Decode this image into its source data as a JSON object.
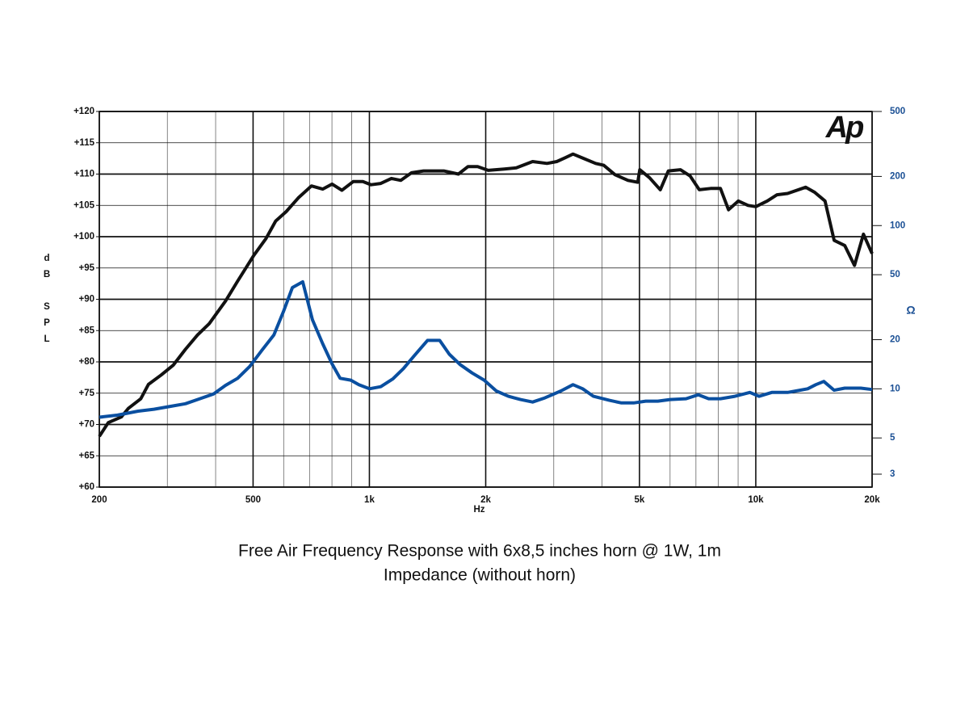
{
  "chart_data": {
    "type": "line",
    "title": [
      "Free Air Frequency Response with 6x8,5 inches horn @ 1W, 1m",
      "Impedance (without horn)"
    ],
    "annotation": "Ap",
    "x_label": "Hz",
    "y_label": "dB SPL",
    "y2_label": "Ω",
    "log_x": true,
    "log_y2": true,
    "grid": true,
    "xlim": [
      200,
      20000
    ],
    "xticks": [
      {
        "value": 200,
        "label": "200"
      },
      {
        "value": 500,
        "label": "500"
      },
      {
        "value": 1000,
        "label": "1k"
      },
      {
        "value": 2000,
        "label": "2k"
      },
      {
        "value": 5000,
        "label": "5k"
      },
      {
        "value": 10000,
        "label": "10k"
      },
      {
        "value": 20000,
        "label": "20k"
      }
    ],
    "xminor_ticks": [
      300,
      400,
      600,
      700,
      800,
      900,
      3000,
      4000,
      6000,
      7000,
      8000,
      9000
    ],
    "ylim": [
      60,
      120
    ],
    "yticks": [
      {
        "value": 60,
        "label": "+60"
      },
      {
        "value": 65,
        "label": "+65"
      },
      {
        "value": 70,
        "label": "+70"
      },
      {
        "value": 75,
        "label": "+75"
      },
      {
        "value": 80,
        "label": "+80"
      },
      {
        "value": 85,
        "label": "+85"
      },
      {
        "value": 90,
        "label": "+90"
      },
      {
        "value": 95,
        "label": "+95"
      },
      {
        "value": 100,
        "label": "+100"
      },
      {
        "value": 105,
        "label": "+105"
      },
      {
        "value": 110,
        "label": "+110"
      },
      {
        "value": 115,
        "label": "+115"
      },
      {
        "value": 120,
        "label": "+120"
      }
    ],
    "y2lim": [
      2.5,
      500
    ],
    "y2ticks": [
      3,
      5,
      10,
      20,
      50,
      100,
      200,
      500
    ],
    "series": [
      {
        "name": "SPL",
        "color": "#111111",
        "x": [
          200,
          211,
          228,
          238,
          256,
          268,
          289,
          311,
          334,
          359,
          385,
          424,
          456,
          502,
          540,
          572,
          609,
          655,
          708,
          757,
          801,
          849,
          908,
          962,
          1010,
          1070,
          1140,
          1206,
          1285,
          1381,
          1558,
          1700,
          1800,
          1906,
          2030,
          2235,
          2400,
          2645,
          2882,
          3055,
          3206,
          3365,
          3583,
          3850,
          4040,
          4323,
          4670,
          4950,
          5010,
          5310,
          5660,
          5940,
          6380,
          6760,
          7140,
          7640,
          8100,
          8500,
          9010,
          9550,
          10000,
          10710,
          11350,
          12090,
          13460,
          14200,
          15110,
          15950,
          16990,
          18010,
          19000,
          20000
        ],
        "values": [
          68.1,
          70.3,
          71.2,
          72.6,
          74.1,
          76.4,
          77.9,
          79.5,
          82,
          84.3,
          86.1,
          89.7,
          92.9,
          97,
          99.7,
          102.5,
          104,
          106.2,
          108.1,
          107.6,
          108.4,
          107.4,
          108.8,
          108.8,
          108.3,
          108.5,
          109.3,
          109,
          110.2,
          110.5,
          110.5,
          110,
          111.2,
          111.2,
          110.6,
          110.8,
          111,
          112,
          111.7,
          112,
          112.6,
          113.2,
          112.5,
          111.7,
          111.4,
          109.9,
          109,
          108.7,
          110.7,
          109.4,
          107.5,
          110.5,
          110.7,
          109.7,
          107.5,
          107.7,
          107.7,
          104.3,
          105.7,
          105,
          104.8,
          105.7,
          106.7,
          106.9,
          107.9,
          107.1,
          105.7,
          99.4,
          98.6,
          95.4,
          100.4,
          97.3
        ]
      },
      {
        "name": "Impedance",
        "color": "#0a4fa0",
        "axis": "y2",
        "x": [
          200,
          223,
          252,
          277,
          305,
          334,
          359,
          395,
          424,
          456,
          490,
          527,
          566,
          599,
          632,
          672,
          712,
          757,
          801,
          840,
          895,
          939,
          1000,
          1070,
          1150,
          1225,
          1305,
          1414,
          1520,
          1610,
          1715,
          1844,
          1982,
          2130,
          2290,
          2460,
          2645,
          2845,
          3130,
          3365,
          3565,
          3800,
          4180,
          4490,
          4830,
          5190,
          5580,
          6000,
          6600,
          7100,
          7550,
          8100,
          8830,
          9650,
          10200,
          11000,
          12090,
          13000,
          13620,
          14300,
          15000,
          15950,
          16990,
          18700,
          20000
        ],
        "values": [
          6.7,
          6.9,
          7.3,
          7.5,
          7.8,
          8.1,
          8.6,
          9.3,
          10.5,
          11.6,
          13.7,
          17.2,
          21.4,
          29.7,
          41.7,
          45.2,
          26.5,
          18.9,
          14.2,
          11.6,
          11.3,
          10.6,
          10,
          10.3,
          11.5,
          13.3,
          15.9,
          19.8,
          19.8,
          16.3,
          14.1,
          12.5,
          11.3,
          9.7,
          9,
          8.6,
          8.3,
          8.8,
          9.7,
          10.6,
          10,
          9,
          8.5,
          8.2,
          8.2,
          8.4,
          8.4,
          8.6,
          8.7,
          9.2,
          8.7,
          8.7,
          9,
          9.5,
          9,
          9.5,
          9.5,
          9.8,
          10,
          10.6,
          11.1,
          9.8,
          10.1,
          10.1,
          9.9
        ]
      }
    ]
  }
}
